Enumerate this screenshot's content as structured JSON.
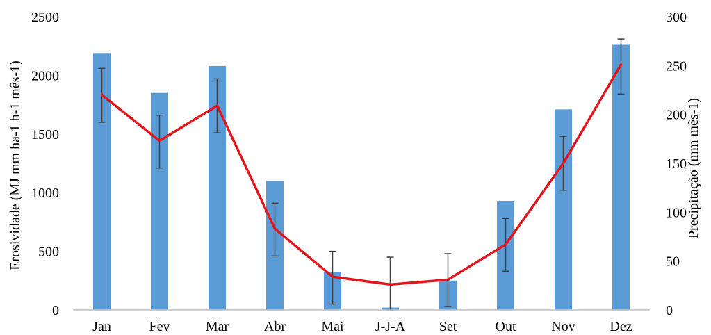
{
  "chart_data": {
    "type": "bar",
    "categories": [
      "Jan",
      "Fev",
      "Mar",
      "Abr",
      "Mai",
      "J-J-A",
      "Set",
      "Out",
      "Nov",
      "Dez"
    ],
    "series": [
      {
        "type": "bar",
        "axis": "left",
        "color": "#5b9bd5",
        "values": [
          2190,
          1850,
          2080,
          1100,
          320,
          20,
          250,
          930,
          1710,
          2260
        ],
        "error_low": [
          1600,
          1210,
          1510,
          460,
          50,
          0,
          30,
          330,
          1020,
          1840
        ],
        "error_high": [
          2060,
          1660,
          1970,
          910,
          500,
          450,
          480,
          780,
          1480,
          2310
        ]
      },
      {
        "type": "line",
        "axis": "right",
        "color": "#e3151a",
        "values": [
          220,
          173,
          209,
          83,
          34,
          26,
          31,
          67,
          150,
          251
        ]
      }
    ],
    "ylabel": "Erosividade  (MJ mm ha-1 h-1 mês-1)",
    "y2label": "Precipitação (mm mês-1)",
    "ylim": [
      0,
      2500
    ],
    "y2lim": [
      0,
      300
    ],
    "yticks": [
      "0",
      "500",
      "1000",
      "1500",
      "2000",
      "2500"
    ],
    "y2ticks": [
      "0",
      "50",
      "100",
      "150",
      "200",
      "250",
      "300"
    ],
    "grid": false,
    "legend": "none"
  }
}
